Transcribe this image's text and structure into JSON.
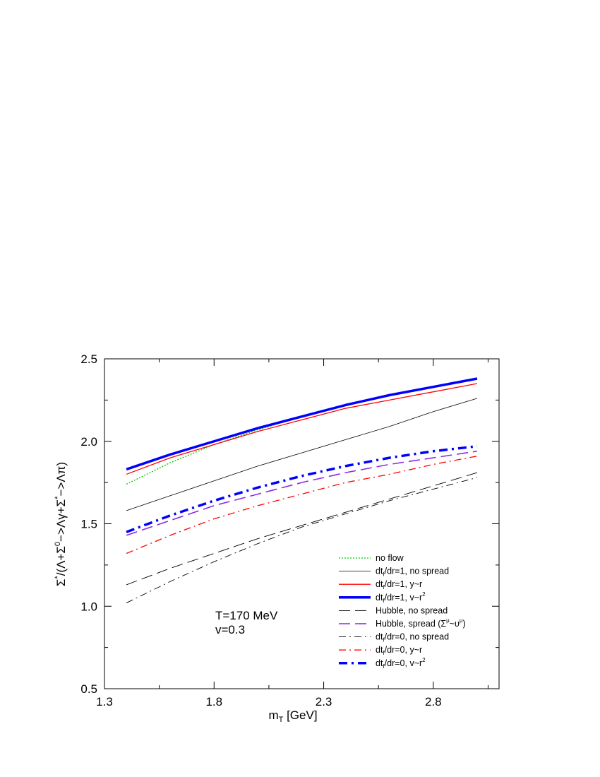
{
  "chart_data": {
    "type": "line",
    "xlabel": "m_T [GeV]",
    "ylabel": "Σ*/(Λ+Σ0->Λγ+Σ*->Λπ)",
    "xlim": [
      1.3,
      3.1
    ],
    "ylim": [
      0.5,
      2.5
    ],
    "x_ticks": [
      "1.3",
      "1.8",
      "2.3",
      "2.8"
    ],
    "y_ticks": [
      "0.5",
      "1.0",
      "1.5",
      "2.0",
      "2.5"
    ],
    "grid": false,
    "legend_position": "bottom-right",
    "annotations": [
      "T=170 MeV",
      "v=0.3"
    ],
    "x": [
      1.4,
      1.6,
      1.8,
      2.0,
      2.2,
      2.4,
      2.6,
      2.8,
      3.0
    ],
    "series": [
      {
        "name": "no flow",
        "legend_label": "no flow",
        "color": "#00cc00",
        "style": "dotted",
        "values": [
          1.74,
          1.87,
          1.98,
          2.07,
          2.15,
          2.22,
          2.28,
          2.33,
          2.38
        ]
      },
      {
        "name": "dt_f/dr=1, no spread",
        "legend_label": "dt",
        "legend_sub": "f",
        "legend_rest": "/dr=1, no spread",
        "color": "#000000",
        "style": "solid-thin",
        "values": [
          1.58,
          1.67,
          1.76,
          1.85,
          1.93,
          2.01,
          2.09,
          2.18,
          2.26
        ]
      },
      {
        "name": "dt_f/dr=1, y~r",
        "legend_label": "dt",
        "legend_sub": "f",
        "legend_rest": "/dr=1, y~r",
        "color": "#ff0000",
        "style": "solid",
        "values": [
          1.8,
          1.9,
          1.98,
          2.06,
          2.13,
          2.2,
          2.25,
          2.3,
          2.35
        ]
      },
      {
        "name": "dt_f/dr=1, v~r^2",
        "legend_label": "dt",
        "legend_sub": "f",
        "legend_rest": "/dr=1, v~r",
        "legend_sup": "2",
        "color": "#0000ff",
        "style": "solid-thick",
        "values": [
          1.83,
          1.92,
          2.0,
          2.08,
          2.15,
          2.22,
          2.28,
          2.33,
          2.38
        ]
      },
      {
        "name": "Hubble, no spread",
        "legend_label": "Hubble, no spread",
        "color": "#000000",
        "style": "dash-long-thin",
        "values": [
          1.13,
          1.23,
          1.32,
          1.41,
          1.49,
          1.57,
          1.65,
          1.73,
          1.81
        ]
      },
      {
        "name": "Hubble, spread",
        "legend_label": "Hubble, spread (Σ",
        "legend_sup": "μ",
        "legend_rest": "~υ",
        "legend_sup2": "μ",
        "legend_tail": ")",
        "color": "#8a2be2",
        "style": "dash-long",
        "values": [
          1.43,
          1.52,
          1.61,
          1.68,
          1.75,
          1.81,
          1.86,
          1.9,
          1.94
        ]
      },
      {
        "name": "dt_f/dr=0, no spread",
        "legend_label": "dt",
        "legend_sub": "f",
        "legend_rest": "/dr=0, no spread",
        "color": "#000000",
        "style": "dashdot-thin",
        "values": [
          1.02,
          1.15,
          1.27,
          1.38,
          1.48,
          1.56,
          1.64,
          1.71,
          1.78
        ]
      },
      {
        "name": "dt_f/dr=0, y~r",
        "legend_label": "dt",
        "legend_sub": "f",
        "legend_rest": "/dr=0, y~r",
        "color": "#ff0000",
        "style": "dashdot",
        "values": [
          1.32,
          1.43,
          1.53,
          1.61,
          1.68,
          1.75,
          1.8,
          1.86,
          1.91
        ]
      },
      {
        "name": "dt_f/dr=0, v~r^2",
        "legend_label": "dt",
        "legend_sub": "f",
        "legend_rest": "/dr=0, v~r",
        "legend_sup": "2",
        "color": "#0000ff",
        "style": "dashdot-thick",
        "values": [
          1.45,
          1.55,
          1.64,
          1.72,
          1.79,
          1.85,
          1.9,
          1.94,
          1.97
        ]
      }
    ]
  }
}
